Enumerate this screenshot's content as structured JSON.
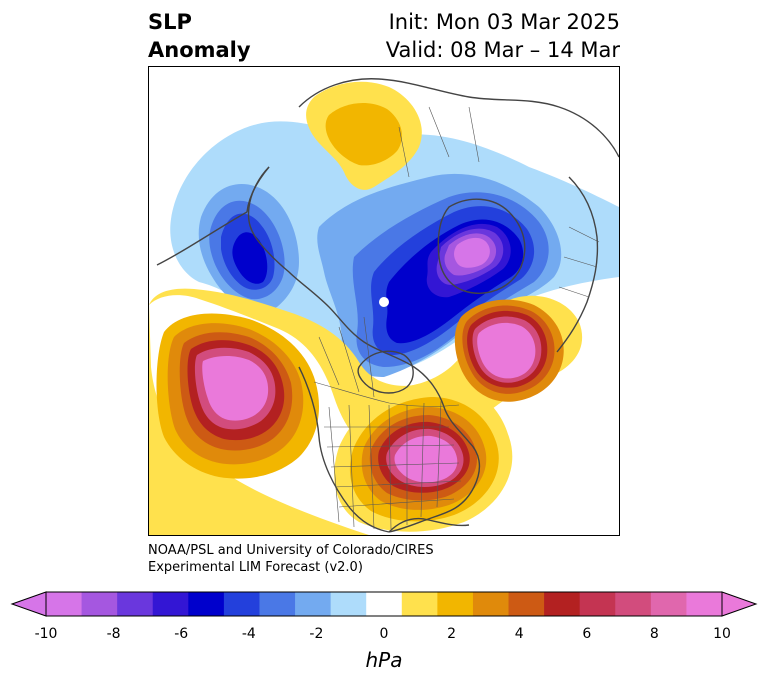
{
  "title": {
    "left_line1": "SLP",
    "left_line2": "Anomaly",
    "right_line1": "Init: Mon 03 Mar 2025",
    "right_line2": "Valid: 08 Mar – 14 Mar"
  },
  "credit": {
    "line1": "NOAA/PSL and University of Colorado/CIRES",
    "line2": "Experimental LIM Forecast (v2.0)"
  },
  "colorbar": {
    "unit": "hPa",
    "tick_labels": [
      "-10",
      "-8",
      "-6",
      "-4",
      "-2",
      "0",
      "2",
      "4",
      "6",
      "8",
      "10"
    ],
    "colors": [
      "#d675e8",
      "#a557e0",
      "#6a37dd",
      "#3316d4",
      "#0000cc",
      "#2340dc",
      "#4a78e6",
      "#73aaf0",
      "#aedcfb",
      "#ffffff",
      "#ffe14d",
      "#f2b600",
      "#e08a0b",
      "#cd5a14",
      "#b32121",
      "#c43452",
      "#d24c7d",
      "#e067ad",
      "#ea79da"
    ]
  },
  "map": {
    "region": "North America / North Pole",
    "anomaly_regions": [
      {
        "location": "Greenland and Baffin Bay",
        "sign": "negative",
        "peak": -10
      },
      {
        "location": "Alaska and Bering Sea",
        "sign": "negative",
        "peak": -6
      },
      {
        "location": "Northern Eurasia and Arctic",
        "sign": "positive",
        "peak": 4
      },
      {
        "location": "Northeast Pacific",
        "sign": "positive",
        "peak": 10
      },
      {
        "location": "North Atlantic",
        "sign": "positive",
        "peak": 10
      },
      {
        "location": "Eastern United States",
        "sign": "positive",
        "peak": 10
      }
    ],
    "colors": {
      "coast": "#444444",
      "border": "#555555"
    }
  }
}
